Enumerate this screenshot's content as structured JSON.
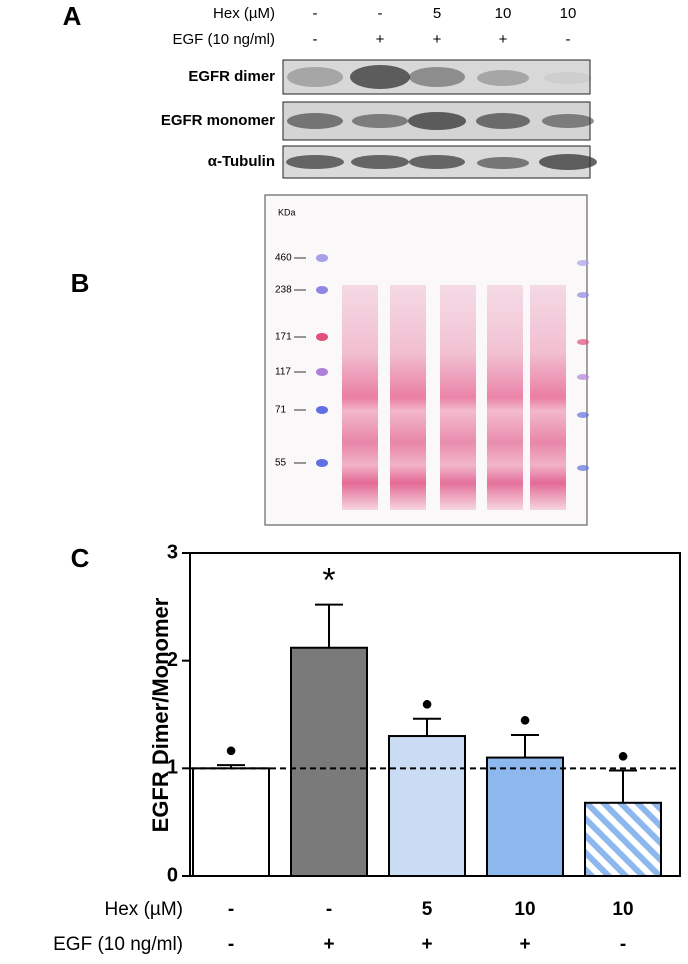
{
  "panel_a": {
    "label": "A",
    "conditions": [
      {
        "label": "Hex (µM)",
        "values": [
          "-",
          "-",
          "5",
          "10",
          "10"
        ]
      },
      {
        "label": "EGF (10 ng/ml)",
        "values": [
          "-",
          "+",
          "+",
          "+",
          "-"
        ]
      }
    ],
    "blots": [
      "EGFR dimer",
      "EGFR monomer",
      "α-Tubulin"
    ]
  },
  "panel_b": {
    "label": "B",
    "unit": "KDa",
    "markers": [
      "460",
      "238",
      "171",
      "117",
      "71",
      "55"
    ]
  },
  "chart_data": {
    "type": "bar",
    "panel_label": "C",
    "y_label": "EGFR Dimer/Monomer",
    "values": [
      1.0,
      2.12,
      1.3,
      1.1,
      0.68
    ],
    "errors": [
      0.03,
      0.4,
      0.16,
      0.21,
      0.3
    ],
    "colors": [
      "#ffffff",
      "#7a7a7a",
      "#c9dcf4",
      "#8db8ee",
      "#8db8ee"
    ],
    "hatched": [
      false,
      false,
      false,
      false,
      true
    ],
    "annotations": [
      "●",
      "*",
      "●",
      "●",
      "●"
    ],
    "reference_line": 1,
    "ylim": [
      0,
      3
    ],
    "yticks": [
      0,
      1,
      2,
      3
    ],
    "conditions": [
      {
        "label": "Hex (µM)",
        "values": [
          "-",
          "-",
          "5",
          "10",
          "10"
        ]
      },
      {
        "label": "EGF (10 ng/ml)",
        "values": [
          "-",
          "+",
          "+",
          "+",
          "-"
        ]
      }
    ]
  }
}
